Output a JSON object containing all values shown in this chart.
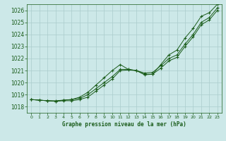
{
  "title": "Graphe pression niveau de la mer (hPa)",
  "background_color": "#cce8e8",
  "grid_color": "#aacccc",
  "line_color": "#1a5c1a",
  "x_labels": [
    "0",
    "1",
    "2",
    "3",
    "4",
    "5",
    "6",
    "7",
    "8",
    "9",
    "10",
    "11",
    "12",
    "13",
    "14",
    "15",
    "16",
    "17",
    "18",
    "19",
    "20",
    "21",
    "22",
    "23"
  ],
  "ylim": [
    1017.5,
    1026.5
  ],
  "yticks": [
    1018,
    1019,
    1020,
    1021,
    1022,
    1023,
    1024,
    1025,
    1026
  ],
  "hours": [
    0,
    1,
    2,
    3,
    4,
    5,
    6,
    7,
    8,
    9,
    10,
    11,
    12,
    13,
    14,
    15,
    16,
    17,
    18,
    19,
    20,
    21,
    22,
    23
  ],
  "line1": [
    1018.6,
    1018.55,
    1018.5,
    1018.45,
    1018.5,
    1018.5,
    1018.6,
    1018.8,
    1019.3,
    1019.8,
    1020.3,
    1021.0,
    1021.05,
    1021.0,
    1020.8,
    1020.85,
    1021.4,
    1022.0,
    1022.3,
    1023.2,
    1024.0,
    1025.0,
    1025.4,
    1026.2
  ],
  "line2": [
    1018.6,
    1018.55,
    1018.5,
    1018.5,
    1018.55,
    1018.6,
    1018.7,
    1019.0,
    1019.5,
    1020.0,
    1020.5,
    1021.1,
    1021.1,
    1021.0,
    1020.7,
    1020.7,
    1021.2,
    1021.8,
    1022.1,
    1023.0,
    1023.8,
    1024.8,
    1025.2,
    1026.0
  ],
  "line3": [
    1018.6,
    1018.55,
    1018.5,
    1018.45,
    1018.55,
    1018.6,
    1018.8,
    1019.2,
    1019.8,
    1020.4,
    1021.0,
    1021.5,
    1021.1,
    1021.0,
    1020.65,
    1020.7,
    1021.5,
    1022.3,
    1022.7,
    1023.7,
    1024.5,
    1025.5,
    1025.8,
    1026.5
  ]
}
